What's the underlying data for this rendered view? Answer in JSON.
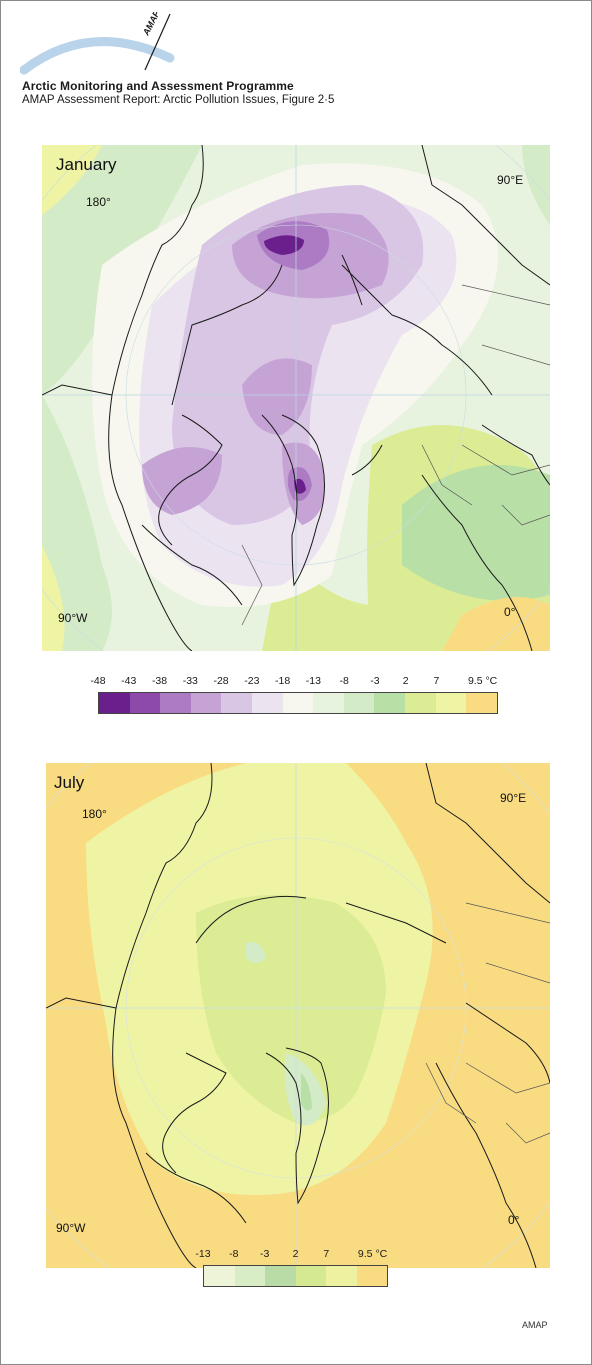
{
  "header": {
    "logo_text": "AMAP",
    "logo_subtext": "Arctic Monitoring and Assessment Programme",
    "title": "Arctic Monitoring and Assessment Programme",
    "subtitle": "AMAP Assessment Report: Arctic Pollution Issues, Figure 2·5"
  },
  "maps": [
    {
      "label": "January",
      "coords": {
        "top_left": "180°",
        "top_right": "90°E",
        "bottom_left": "90°W",
        "bottom_right": "0°"
      },
      "legend": {
        "ticks": [
          "-48",
          "-43",
          "-38",
          "-33",
          "-28",
          "-23",
          "-18",
          "-13",
          "-8",
          "-3",
          "2",
          "7",
          "9.5 °C"
        ],
        "colors": [
          "#6a1f8c",
          "#8e4aaa",
          "#ad7bc4",
          "#c6a3d5",
          "#d9c6e4",
          "#ece3f1",
          "#f7f7f0",
          "#e8f3df",
          "#d4ebc8",
          "#b8dfa6",
          "#dcec94",
          "#eef4a4",
          "#f9dc82"
        ]
      }
    },
    {
      "label": "July",
      "coords": {
        "top_left": "180°",
        "top_right": "90°E",
        "bottom_left": "90°W",
        "bottom_right": "0°"
      },
      "legend": {
        "ticks": [
          "-13",
          "-8",
          "-3",
          "2",
          "7",
          "9.5 °C"
        ],
        "colors": [
          "#eef4d8",
          "#d8ecc6",
          "#b9dca7",
          "#d5e892",
          "#eef2a0",
          "#f9dc82"
        ]
      }
    }
  ],
  "footer": {
    "credit": "AMAP"
  }
}
